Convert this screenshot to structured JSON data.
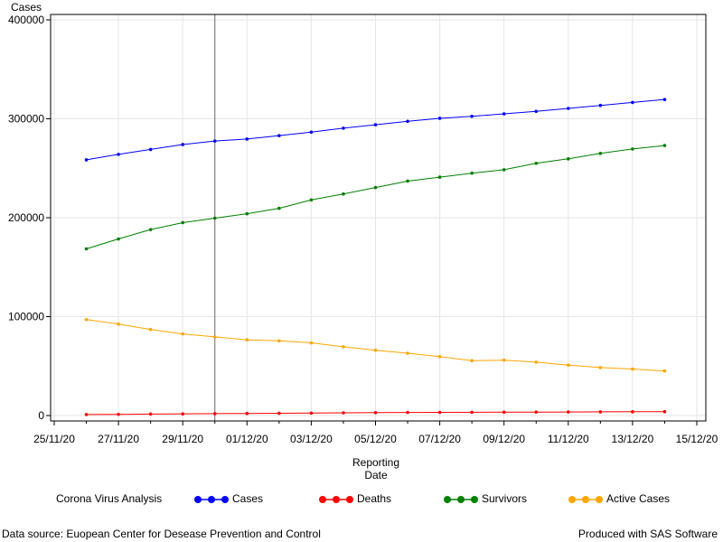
{
  "chart_data": {
    "type": "line",
    "ylabel": "Cases",
    "xlabel_lines": [
      "Reporting",
      "Date"
    ],
    "ylim": [
      0,
      400000
    ],
    "y_ticks": [
      0,
      100000,
      200000,
      300000,
      400000
    ],
    "y_tick_labels": [
      "0",
      "100000",
      "200000",
      "300000",
      "400000"
    ],
    "xlim": [
      "2020-11-25",
      "2020-12-15"
    ],
    "x_ticks": [
      "2020-11-25",
      "2020-11-27",
      "2020-11-29",
      "2020-12-01",
      "2020-12-03",
      "2020-12-05",
      "2020-12-07",
      "2020-12-09",
      "2020-12-11",
      "2020-12-13",
      "2020-12-15"
    ],
    "x_tick_labels": [
      "25/11/20",
      "27/11/20",
      "29/11/20",
      "01/12/20",
      "03/12/20",
      "05/12/20",
      "07/12/20",
      "09/12/20",
      "11/12/20",
      "13/12/20",
      "15/12/20"
    ],
    "reference_line_x": "2020-11-30",
    "grid": true,
    "legend_position": "bottom",
    "x": [
      "2020-11-26",
      "2020-11-27",
      "2020-11-28",
      "2020-11-29",
      "2020-11-30",
      "2020-12-01",
      "2020-12-02",
      "2020-12-03",
      "2020-12-04",
      "2020-12-05",
      "2020-12-06",
      "2020-12-07",
      "2020-12-08",
      "2020-12-09",
      "2020-12-10",
      "2020-12-11",
      "2020-12-12",
      "2020-12-13",
      "2020-12-14"
    ],
    "series": [
      {
        "name": "Cases",
        "color": "#0000ff",
        "values": [
          258500,
          264000,
          269000,
          274000,
          277500,
          279500,
          283000,
          286500,
          290500,
          294000,
          297500,
          300500,
          302500,
          305000,
          307500,
          310500,
          313500,
          316500,
          319500
        ]
      },
      {
        "name": "Deaths",
        "color": "#ff0000",
        "values": [
          1000,
          1200,
          1500,
          1700,
          1900,
          2100,
          2300,
          2500,
          2700,
          2900,
          3100,
          3200,
          3300,
          3400,
          3500,
          3600,
          3700,
          3800,
          3900
        ]
      },
      {
        "name": "Survivors",
        "color": "#008000",
        "values": [
          168500,
          178500,
          188000,
          195000,
          199500,
          204000,
          209500,
          218000,
          224000,
          230500,
          237000,
          241000,
          245000,
          248500,
          255000,
          259500,
          265000,
          269500,
          273000
        ]
      },
      {
        "name": "Active Cases",
        "color": "#ffa500",
        "values": [
          97000,
          92500,
          87000,
          82500,
          79500,
          76500,
          75500,
          73500,
          69500,
          66000,
          63000,
          59500,
          55500,
          56000,
          54000,
          51000,
          48500,
          47000,
          45000
        ]
      }
    ]
  },
  "legend": {
    "title": "Corona Virus Analysis",
    "items": [
      {
        "label": "Cases",
        "color": "#0000ff"
      },
      {
        "label": "Deaths",
        "color": "#ff0000"
      },
      {
        "label": "Survivors",
        "color": "#008000"
      },
      {
        "label": "Active Cases",
        "color": "#ffa500"
      }
    ]
  },
  "footer": {
    "left": "Data source: Euopean Center for Desease Prevention and Control",
    "right": "Produced with SAS Software"
  }
}
